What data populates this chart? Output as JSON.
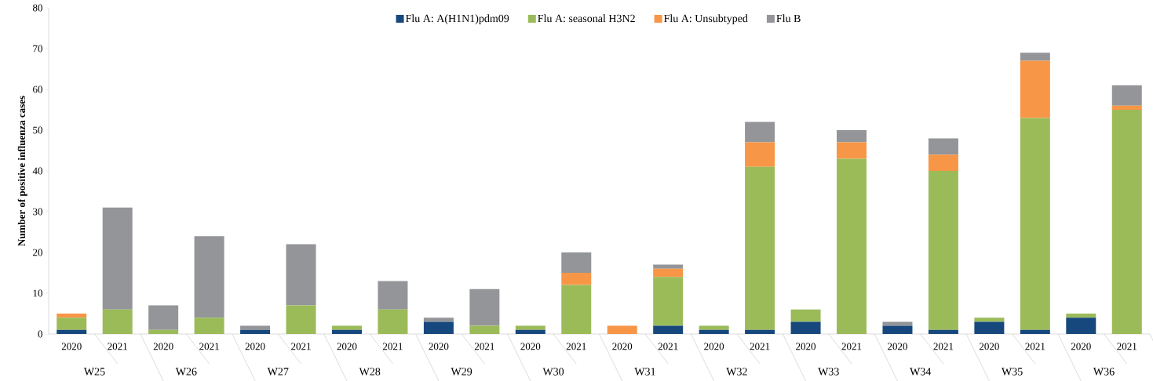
{
  "chart_data": {
    "type": "bar",
    "stacked": true,
    "ylabel": "Number of positive influenza cases",
    "categories": [
      "2020",
      "2021",
      "2020",
      "2021",
      "2020",
      "2021",
      "2020",
      "2021",
      "2020",
      "2021",
      "2020",
      "2021",
      "2020",
      "2021",
      "2020",
      "2021",
      "2020",
      "2021",
      "2020",
      "2021",
      "2020",
      "2021",
      "2020",
      "2021"
    ],
    "annotations": [
      "W25",
      "W26",
      "W27",
      "W28",
      "W29",
      "W30",
      "W31",
      "W32",
      "W33",
      "W34",
      "W35",
      "W36"
    ],
    "series": [
      {
        "name": "Flu A: A(H1N1)pdm09",
        "color": "#17487d",
        "values": [
          1,
          0,
          0,
          0,
          1,
          0,
          1,
          0,
          3,
          0,
          1,
          0,
          0,
          2,
          1,
          1,
          3,
          0,
          2,
          1,
          3,
          1,
          4,
          0
        ]
      },
      {
        "name": "Flu A: seasonal H3N2",
        "color": "#9bbb59",
        "values": [
          3,
          6,
          1,
          4,
          0,
          7,
          1,
          6,
          0,
          2,
          1,
          12,
          0,
          12,
          1,
          40,
          3,
          43,
          0,
          39,
          1,
          52,
          1,
          55
        ]
      },
      {
        "name": "Flu A: Unsubtyped",
        "color": "#f79646",
        "values": [
          1,
          0,
          0,
          0,
          0,
          0,
          0,
          0,
          0,
          0,
          0,
          3,
          2,
          2,
          0,
          6,
          0,
          4,
          0,
          4,
          0,
          14,
          0,
          1
        ]
      },
      {
        "name": "Flu B",
        "color": "#939598",
        "values": [
          0,
          25,
          6,
          20,
          1,
          15,
          0,
          7,
          1,
          9,
          0,
          5,
          0,
          1,
          0,
          5,
          0,
          3,
          1,
          4,
          0,
          2,
          0,
          5
        ]
      }
    ],
    "ylim": [
      0,
      80
    ],
    "yticks": [
      0,
      10,
      20,
      30,
      40,
      50,
      60,
      70,
      80
    ],
    "legend": "top"
  }
}
